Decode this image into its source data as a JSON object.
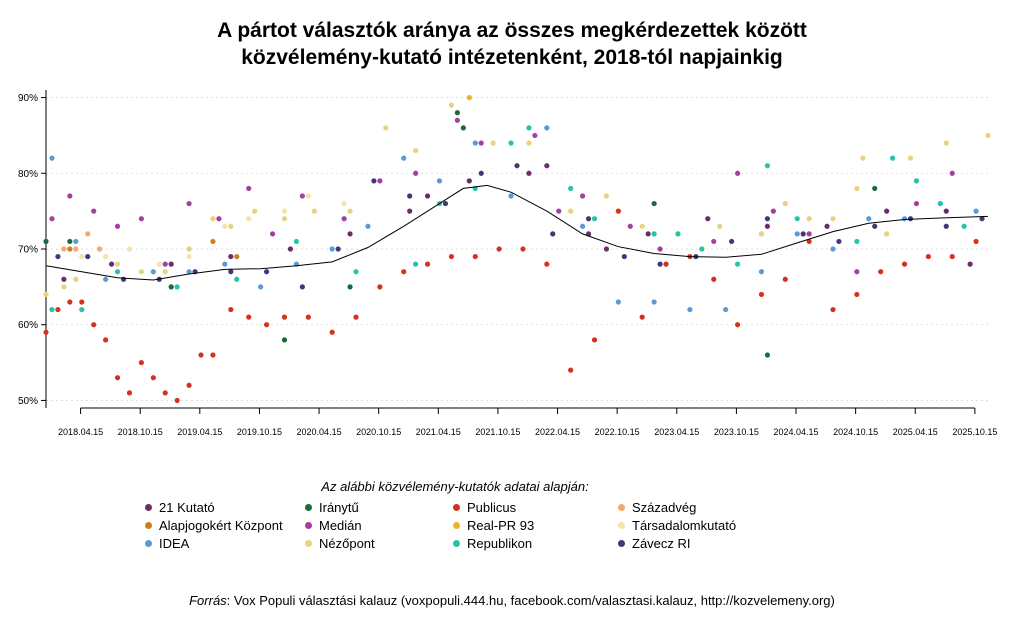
{
  "title_line1": "A pártot választók aránya az összes megkérdezettek között",
  "title_line2": "közvélemény-kutató intézetenként, 2018-tól napjainkig",
  "legend_heading": "Az alábbi közvélemény-kutatók adatai alapján:",
  "source_prefix": "Forrás",
  "source_text": ": Vox Populi választási kalauz (voxpopuli.444.hu, facebook.com/valasztasi.kalauz, http://kozvelemeny.org)",
  "chart_data": {
    "type": "scatter",
    "title": "A pártot választók aránya az összes megkérdezettek között közvélemény-kutató intézetenként, 2018-tól napjainkig",
    "xlabel": "",
    "ylabel": "",
    "x_unit": "years since 2018-01-01",
    "xlim": [
      0.0,
      7.9
    ],
    "ylim": [
      49,
      91
    ],
    "y_ticks": [
      50,
      60,
      70,
      80,
      90
    ],
    "y_tick_labels": [
      "50%",
      "60%",
      "70%",
      "80%",
      "90%"
    ],
    "x_ticks": [
      0.29,
      0.79,
      1.29,
      1.79,
      2.29,
      2.79,
      3.29,
      3.79,
      4.29,
      4.79,
      5.29,
      5.79,
      6.29,
      6.79,
      7.29,
      7.79
    ],
    "x_tick_labels": [
      "2018.04.15",
      "2018.10.15",
      "2019.04.15",
      "2019.10.15",
      "2020.04.15",
      "2020.10.15",
      "2021.04.15",
      "2021.10.15",
      "2022.04.15",
      "2022.10.15",
      "2023.04.15",
      "2023.10.15",
      "2024.04.15",
      "2024.10.15",
      "2025.04.15",
      "2025.10.15"
    ],
    "grid": "horizontal dotted",
    "series": [
      {
        "name": "21 Kutató",
        "color": "#6b2d68",
        "x": [
          0.15,
          0.55,
          1.05,
          1.55,
          2.05,
          2.55,
          3.05,
          3.2,
          3.55,
          4.05,
          4.2,
          4.55,
          4.7,
          5.05,
          5.55,
          6.05,
          6.55,
          7.05,
          7.55,
          7.75
        ],
        "y": [
          66,
          68,
          68,
          69,
          70,
          72,
          75,
          77,
          79,
          80,
          81,
          72,
          70,
          72,
          74,
          73,
          73,
          75,
          75,
          68
        ]
      },
      {
        "name": "Alapjogokért Központ",
        "color": "#c8811c",
        "x": [
          0.0,
          0.2,
          1.4,
          1.6
        ],
        "y": [
          71,
          70,
          71,
          69
        ]
      },
      {
        "name": "IDEA",
        "color": "#5b9bd5",
        "x": [
          0.05,
          0.25,
          0.5,
          0.9,
          1.2,
          1.5,
          1.8,
          2.1,
          2.4,
          2.7,
          3.0,
          3.3,
          3.6,
          3.9,
          4.2,
          4.5,
          4.8,
          5.1,
          5.4,
          5.7,
          6.0,
          6.3,
          6.6,
          6.9,
          7.2,
          7.5,
          7.8
        ],
        "y": [
          82,
          71,
          66,
          67,
          67,
          68,
          65,
          68,
          70,
          73,
          82,
          79,
          84,
          77,
          86,
          73,
          63,
          63,
          62,
          62,
          67,
          72,
          70,
          74,
          74,
          76,
          75
        ]
      },
      {
        "name": "Iránytű",
        "color": "#1a6b3a",
        "x": [
          0.0,
          0.2,
          1.05,
          2.0,
          2.55,
          3.45,
          3.5,
          5.1,
          6.05,
          6.95
        ],
        "y": [
          71,
          71,
          65,
          58,
          65,
          88,
          86,
          76,
          56,
          78
        ]
      },
      {
        "name": "Medián",
        "color": "#a53ea3",
        "x": [
          0.05,
          0.2,
          0.4,
          0.6,
          0.8,
          1.0,
          1.2,
          1.45,
          1.7,
          1.9,
          2.15,
          2.5,
          2.8,
          3.1,
          3.45,
          3.65,
          4.1,
          4.3,
          4.5,
          4.9,
          5.15,
          5.6,
          5.8,
          6.1,
          6.4,
          6.8,
          7.3,
          7.6
        ],
        "y": [
          74,
          77,
          75,
          73,
          74,
          68,
          76,
          74,
          78,
          72,
          77,
          74,
          79,
          80,
          87,
          84,
          85,
          75,
          77,
          73,
          70,
          71,
          80,
          75,
          72,
          67,
          76,
          80
        ]
      },
      {
        "name": "Nézőpont",
        "color": "#e8d27d",
        "x": [
          0.0,
          0.15,
          0.25,
          0.45,
          0.6,
          0.8,
          1.0,
          1.2,
          1.4,
          1.55,
          1.75,
          2.0,
          2.25,
          2.55,
          2.85,
          3.1,
          3.4,
          3.55,
          3.75,
          4.05,
          4.4,
          4.7,
          5.0,
          5.3,
          5.65,
          6.0,
          6.2,
          6.4,
          6.6,
          6.8,
          6.85,
          7.05,
          7.25,
          7.55,
          7.9
        ],
        "y": [
          64,
          65,
          66,
          70,
          68,
          67,
          67,
          70,
          74,
          73,
          75,
          74,
          75,
          75,
          86,
          83,
          89,
          90,
          84,
          84,
          75,
          77,
          73,
          72,
          73,
          72,
          76,
          74,
          74,
          78,
          82,
          72,
          82,
          84,
          85
        ]
      },
      {
        "name": "Publicus",
        "color": "#d7301f",
        "x": [
          0.0,
          0.1,
          0.2,
          0.3,
          0.4,
          0.5,
          0.6,
          0.7,
          0.8,
          0.9,
          1.0,
          1.1,
          1.2,
          1.3,
          1.4,
          1.55,
          1.7,
          1.85,
          2.0,
          2.2,
          2.4,
          2.6,
          2.8,
          3.0,
          3.2,
          3.4,
          3.6,
          3.8,
          4.0,
          4.2,
          4.4,
          4.6,
          4.8,
          5.0,
          5.2,
          5.4,
          5.6,
          5.8,
          6.0,
          6.2,
          6.4,
          6.6,
          6.8,
          7.0,
          7.2,
          7.4,
          7.6,
          7.8
        ],
        "y": [
          59,
          62,
          63,
          63,
          60,
          58,
          53,
          51,
          55,
          53,
          51,
          50,
          52,
          56,
          56,
          62,
          61,
          60,
          61,
          61,
          59,
          61,
          65,
          67,
          68,
          69,
          69,
          70,
          70,
          68,
          54,
          58,
          75,
          61,
          68,
          69,
          66,
          60,
          64,
          66,
          71,
          62,
          64,
          67,
          68,
          69,
          69,
          71
        ]
      },
      {
        "name": "Real-PR 93",
        "color": "#f0b429",
        "x": [
          3.55
        ],
        "y": [
          90
        ]
      },
      {
        "name": "Republikon",
        "color": "#25c3a8",
        "x": [
          0.05,
          0.3,
          0.6,
          1.1,
          1.6,
          2.1,
          2.6,
          3.1,
          3.3,
          3.6,
          3.9,
          4.05,
          4.4,
          4.6,
          5.1,
          5.3,
          5.5,
          5.8,
          6.05,
          6.3,
          6.8,
          7.1,
          7.3,
          7.5,
          7.7
        ],
        "y": [
          62,
          62,
          67,
          65,
          66,
          71,
          67,
          68,
          76,
          78,
          84,
          86,
          78,
          74,
          72,
          72,
          70,
          68,
          81,
          74,
          71,
          82,
          79,
          76,
          73
        ]
      },
      {
        "name": "Századvég",
        "color": "#f3a86d",
        "x": [
          0.15,
          0.25,
          0.35,
          0.45
        ],
        "y": [
          70,
          70,
          72,
          70
        ]
      },
      {
        "name": "Társadalomkutató",
        "color": "#f4e3ae",
        "x": [
          0.3,
          0.5,
          0.7,
          0.95,
          1.2,
          1.5,
          1.7,
          2.0,
          2.2,
          2.5
        ],
        "y": [
          69,
          69,
          70,
          68,
          69,
          73,
          74,
          75,
          77,
          76
        ]
      },
      {
        "name": "Závecz RI",
        "color": "#3d3a7a",
        "x": [
          0.1,
          0.35,
          0.65,
          0.95,
          1.25,
          1.55,
          1.85,
          2.15,
          2.45,
          2.75,
          3.05,
          3.35,
          3.65,
          3.95,
          4.25,
          4.55,
          4.85,
          5.15,
          5.45,
          5.75,
          6.05,
          6.35,
          6.65,
          6.95,
          7.25,
          7.55,
          7.85
        ],
        "y": [
          69,
          69,
          66,
          66,
          67,
          67,
          67,
          65,
          70,
          79,
          77,
          76,
          80,
          81,
          72,
          74,
          69,
          68,
          69,
          71,
          74,
          72,
          71,
          73,
          74,
          73,
          74
        ]
      },
      {
        "name": "Trend",
        "color": "#000000",
        "x": [
          0.0,
          0.3,
          0.6,
          0.9,
          1.2,
          1.5,
          1.8,
          2.1,
          2.4,
          2.7,
          3.0,
          3.3,
          3.5,
          3.7,
          3.9,
          4.2,
          4.5,
          4.8,
          5.1,
          5.4,
          5.7,
          6.0,
          6.3,
          6.6,
          6.9,
          7.2,
          7.5,
          7.9
        ],
        "y": [
          67.8,
          67.0,
          66.2,
          65.9,
          66.7,
          67.3,
          67.4,
          67.8,
          68.3,
          70.2,
          73.0,
          76.0,
          78.0,
          78.4,
          77.5,
          75.0,
          72.0,
          70.3,
          69.4,
          69.0,
          68.9,
          69.3,
          70.8,
          72.3,
          73.4,
          73.9,
          74.1,
          74.3
        ]
      }
    ]
  }
}
